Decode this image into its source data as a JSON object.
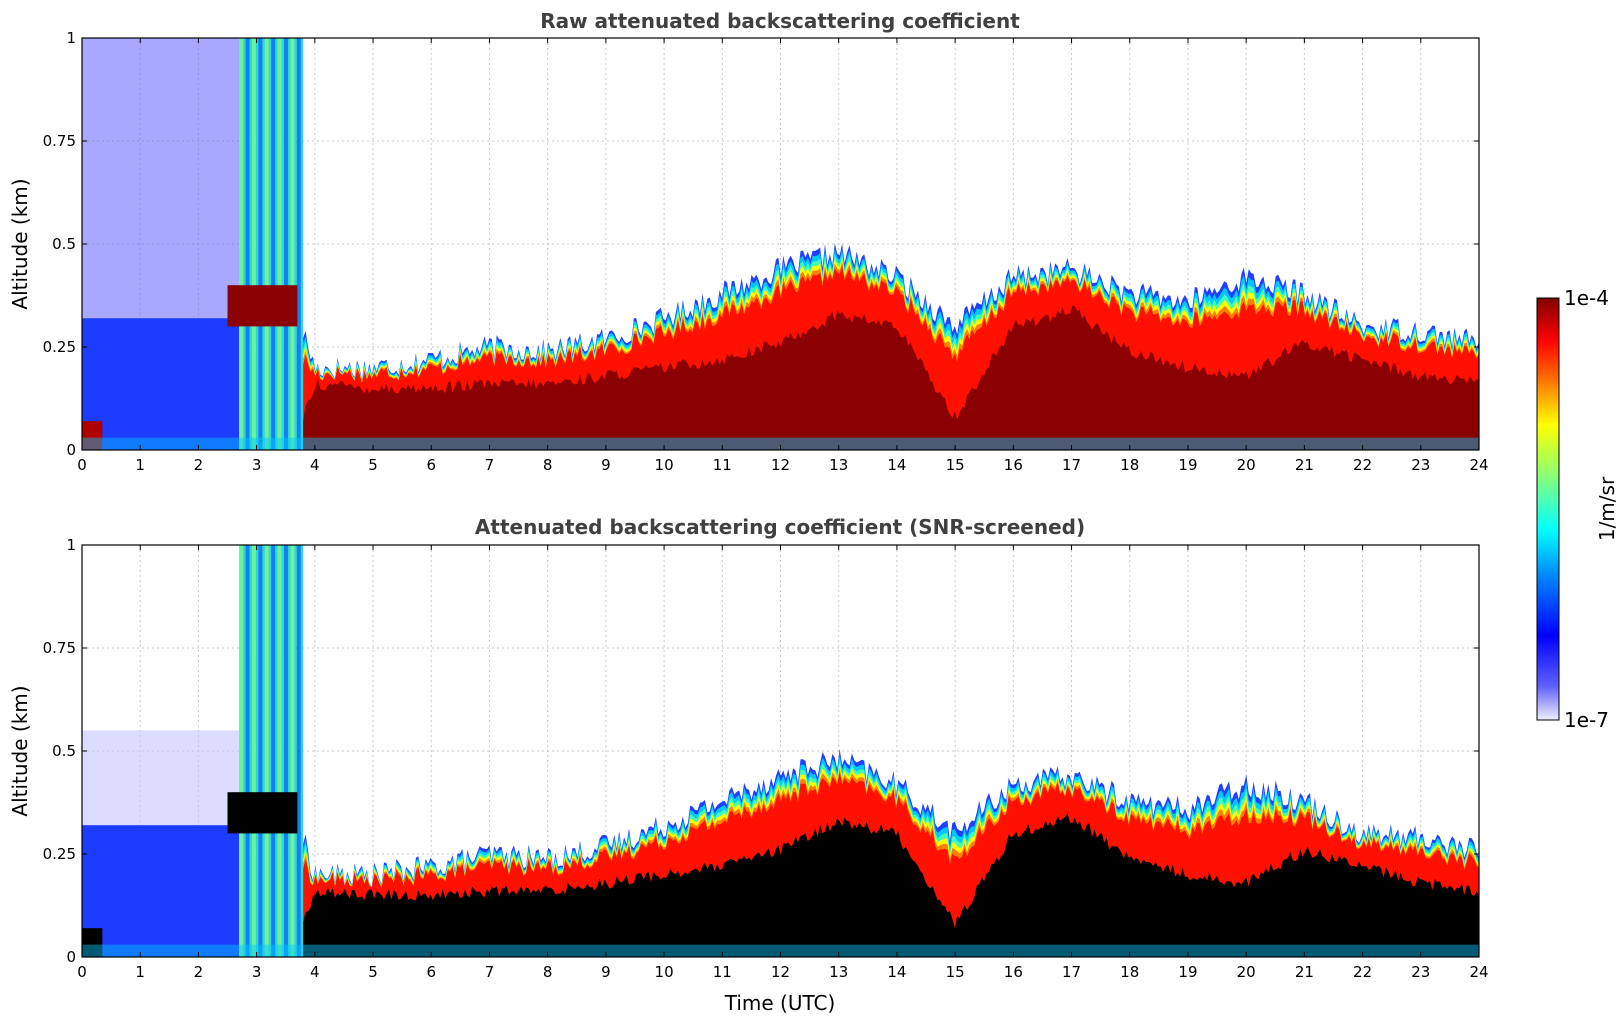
{
  "chart_data": [
    {
      "type": "heatmap",
      "title": "Raw attenuated backscattering coefficient",
      "xlabel": "",
      "ylabel": "Altitude (km)",
      "xlim": [
        0,
        24
      ],
      "ylim": [
        0,
        1
      ],
      "x_ticks": [
        "0",
        "1",
        "2",
        "3",
        "4",
        "5",
        "6",
        "7",
        "8",
        "9",
        "10",
        "11",
        "12",
        "13",
        "14",
        "15",
        "16",
        "17",
        "18",
        "19",
        "20",
        "21",
        "22",
        "23",
        "24"
      ],
      "y_ticks": [
        "0",
        "0.25",
        "0.5",
        "0.75",
        "1"
      ],
      "grid": true,
      "screened": false,
      "layer_top_km": {
        "x": [
          0,
          1,
          2,
          2.5,
          3,
          3.5,
          4,
          5,
          6,
          7,
          8,
          9,
          10,
          11,
          12,
          13,
          14,
          15,
          16,
          17,
          18,
          19,
          20,
          21,
          22,
          23,
          24
        ],
        "y": [
          0.3,
          0.3,
          0.32,
          0.38,
          0.38,
          0.42,
          0.2,
          0.2,
          0.22,
          0.25,
          0.24,
          0.27,
          0.32,
          0.38,
          0.44,
          0.48,
          0.42,
          0.3,
          0.42,
          0.44,
          0.38,
          0.36,
          0.42,
          0.38,
          0.3,
          0.29,
          0.26
        ]
      },
      "dense_layer_km": {
        "x": [
          0,
          3.6,
          4,
          5,
          6,
          7,
          8,
          9,
          10,
          11,
          12,
          13,
          14,
          15,
          16,
          17,
          18,
          19,
          20,
          21,
          22,
          23,
          24
        ],
        "y": [
          0,
          0,
          0.16,
          0.15,
          0.15,
          0.16,
          0.16,
          0.18,
          0.2,
          0.22,
          0.26,
          0.33,
          0.3,
          0.08,
          0.3,
          0.34,
          0.24,
          0.2,
          0.18,
          0.26,
          0.22,
          0.18,
          0.16
        ]
      }
    },
    {
      "type": "heatmap",
      "title": "Attenuated backscattering coefficient (SNR-screened)",
      "xlabel": "Time (UTC)",
      "ylabel": "Altitude (km)",
      "xlim": [
        0,
        24
      ],
      "ylim": [
        0,
        1
      ],
      "x_ticks": [
        "0",
        "1",
        "2",
        "3",
        "4",
        "5",
        "6",
        "7",
        "8",
        "9",
        "10",
        "11",
        "12",
        "13",
        "14",
        "15",
        "16",
        "17",
        "18",
        "19",
        "20",
        "21",
        "22",
        "23",
        "24"
      ],
      "y_ticks": [
        "0",
        "0.25",
        "0.5",
        "0.75",
        "1"
      ],
      "grid": true,
      "screened": true,
      "saturated_color": "#000000",
      "layer_top_km": {
        "x": [
          0,
          1,
          2,
          2.5,
          3,
          3.5,
          4,
          5,
          6,
          7,
          8,
          9,
          10,
          11,
          12,
          13,
          14,
          15,
          16,
          17,
          18,
          19,
          20,
          21,
          22,
          23,
          24
        ],
        "y": [
          0.3,
          0.3,
          0.32,
          0.38,
          0.38,
          0.42,
          0.2,
          0.2,
          0.22,
          0.25,
          0.24,
          0.27,
          0.32,
          0.38,
          0.44,
          0.48,
          0.42,
          0.3,
          0.42,
          0.44,
          0.38,
          0.36,
          0.42,
          0.38,
          0.3,
          0.29,
          0.26
        ]
      },
      "dense_layer_km": {
        "x": [
          0,
          3.6,
          4,
          5,
          6,
          7,
          8,
          9,
          10,
          11,
          12,
          13,
          14,
          15,
          16,
          17,
          18,
          19,
          20,
          21,
          22,
          23,
          24
        ],
        "y": [
          0,
          0,
          0.16,
          0.15,
          0.15,
          0.16,
          0.16,
          0.18,
          0.2,
          0.22,
          0.26,
          0.33,
          0.3,
          0.08,
          0.3,
          0.34,
          0.24,
          0.2,
          0.18,
          0.26,
          0.22,
          0.18,
          0.16
        ]
      }
    }
  ],
  "colorbar": {
    "label": "1/m/sr",
    "min_label": "1e-7",
    "max_label": "1e-4",
    "scale": "log",
    "colors": [
      "#eeeeff",
      "#0000ff",
      "#00ffff",
      "#ffff00",
      "#ff0000",
      "#800000"
    ]
  }
}
